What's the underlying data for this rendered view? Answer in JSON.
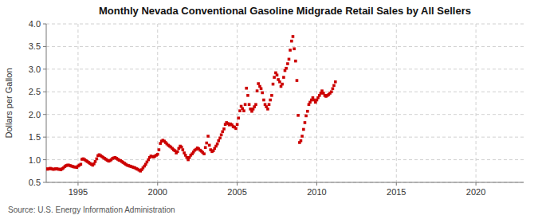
{
  "chart_data": {
    "type": "scatter",
    "title": "Monthly Nevada Conventional Gasoline Midgrade Retail Sales by All Sellers",
    "y_label": "Dollars per Gallon",
    "annotation": "Source: U.S. Energy Information Administration",
    "color": "#cc0000",
    "marker": "square",
    "grid": true,
    "xlim": [
      1993.0,
      2023.0
    ],
    "ylim": [
      0.5,
      4.0
    ],
    "xticks": [
      1995,
      2000,
      2005,
      2010,
      2015,
      2020
    ],
    "yticks": [
      0.5,
      {
        "value": 1.0,
        "label": "1.0"
      },
      1.5,
      {
        "value": 2.0,
        "label": "2.0"
      },
      2.5,
      {
        "value": 3.0,
        "label": "3.0"
      },
      3.5,
      {
        "value": 4.0,
        "label": "4.0"
      }
    ],
    "x": [
      1993.0,
      1993.08,
      1993.17,
      1993.25,
      1993.33,
      1993.42,
      1993.5,
      1993.58,
      1993.67,
      1993.75,
      1993.83,
      1993.92,
      1994.0,
      1994.08,
      1994.17,
      1994.25,
      1994.33,
      1994.42,
      1994.5,
      1994.58,
      1994.67,
      1994.75,
      1994.83,
      1994.92,
      1995.0,
      1995.08,
      1995.17,
      1995.25,
      1995.33,
      1995.42,
      1995.5,
      1995.58,
      1995.67,
      1995.75,
      1995.83,
      1995.92,
      1996.0,
      1996.08,
      1996.17,
      1996.25,
      1996.33,
      1996.42,
      1996.5,
      1996.58,
      1996.67,
      1996.75,
      1996.83,
      1996.92,
      1997.0,
      1997.08,
      1997.17,
      1997.25,
      1997.33,
      1997.42,
      1997.5,
      1997.58,
      1997.67,
      1997.75,
      1997.83,
      1997.92,
      1998.0,
      1998.08,
      1998.17,
      1998.25,
      1998.33,
      1998.42,
      1998.5,
      1998.58,
      1998.67,
      1998.75,
      1998.83,
      1998.92,
      1999.0,
      1999.08,
      1999.17,
      1999.25,
      1999.33,
      1999.42,
      1999.5,
      1999.58,
      1999.67,
      1999.75,
      1999.83,
      1999.92,
      2000.0,
      2000.08,
      2000.17,
      2000.25,
      2000.33,
      2000.42,
      2000.5,
      2000.58,
      2000.67,
      2000.75,
      2000.83,
      2000.92,
      2001.0,
      2001.08,
      2001.17,
      2001.25,
      2001.33,
      2001.42,
      2001.5,
      2001.58,
      2001.67,
      2001.75,
      2001.83,
      2001.92,
      2002.0,
      2002.08,
      2002.17,
      2002.25,
      2002.33,
      2002.42,
      2002.5,
      2002.58,
      2002.67,
      2002.75,
      2002.83,
      2002.92,
      2003.0,
      2003.08,
      2003.17,
      2003.25,
      2003.33,
      2003.42,
      2003.5,
      2003.58,
      2003.67,
      2003.75,
      2003.83,
      2003.92,
      2004.0,
      2004.08,
      2004.17,
      2004.25,
      2004.33,
      2004.42,
      2004.5,
      2004.58,
      2004.67,
      2004.75,
      2004.83,
      2004.92,
      2005.0,
      2005.08,
      2005.17,
      2005.25,
      2005.33,
      2005.42,
      2005.5,
      2005.58,
      2005.67,
      2005.75,
      2005.83,
      2005.92,
      2006.0,
      2006.08,
      2006.17,
      2006.25,
      2006.33,
      2006.42,
      2006.5,
      2006.58,
      2006.67,
      2006.75,
      2006.83,
      2006.92,
      2007.0,
      2007.08,
      2007.17,
      2007.25,
      2007.33,
      2007.42,
      2007.5,
      2007.58,
      2007.67,
      2007.75,
      2007.83,
      2007.92,
      2008.0,
      2008.08,
      2008.17,
      2008.25,
      2008.33,
      2008.42,
      2008.5,
      2008.58,
      2008.67,
      2008.75,
      2008.83,
      2008.92,
      2009.0,
      2009.08,
      2009.17,
      2009.25,
      2009.33,
      2009.42,
      2009.5,
      2009.58,
      2009.67,
      2009.75,
      2009.83,
      2009.92,
      2010.0,
      2010.08,
      2010.17,
      2010.25,
      2010.33,
      2010.42,
      2010.5,
      2010.58,
      2010.67,
      2010.75,
      2010.83,
      2010.92,
      2011.0,
      2011.08,
      2011.17
    ],
    "values": [
      0.8,
      0.79,
      0.8,
      0.81,
      0.8,
      0.79,
      0.79,
      0.8,
      0.8,
      0.79,
      0.79,
      0.78,
      0.8,
      0.82,
      0.85,
      0.87,
      0.88,
      0.88,
      0.87,
      0.86,
      0.85,
      0.84,
      0.84,
      0.83,
      0.86,
      0.88,
      0.9,
      1.01,
      1.02,
      1.0,
      0.98,
      0.96,
      0.94,
      0.92,
      0.9,
      0.88,
      0.91,
      0.96,
      1.02,
      1.09,
      1.11,
      1.09,
      1.07,
      1.05,
      1.03,
      1.01,
      0.99,
      0.97,
      0.98,
      1.0,
      1.03,
      1.04,
      1.05,
      1.03,
      1.01,
      0.99,
      0.98,
      0.96,
      0.94,
      0.92,
      0.9,
      0.88,
      0.87,
      0.86,
      0.85,
      0.84,
      0.83,
      0.82,
      0.8,
      0.79,
      0.77,
      0.75,
      0.78,
      0.82,
      0.86,
      0.9,
      0.95,
      1.0,
      1.05,
      1.08,
      1.07,
      1.06,
      1.08,
      1.1,
      1.12,
      1.22,
      1.36,
      1.41,
      1.43,
      1.41,
      1.38,
      1.35,
      1.32,
      1.3,
      1.28,
      1.25,
      1.22,
      1.2,
      1.15,
      1.18,
      1.25,
      1.3,
      1.28,
      1.22,
      1.15,
      1.1,
      1.05,
      1.0,
      1.05,
      1.1,
      1.13,
      1.17,
      1.21,
      1.23,
      1.26,
      1.24,
      1.21,
      1.19,
      1.16,
      1.13,
      1.27,
      1.37,
      1.52,
      1.32,
      1.22,
      1.18,
      1.2,
      1.25,
      1.3,
      1.35,
      1.42,
      1.48,
      1.55,
      1.62,
      1.68,
      1.78,
      1.82,
      1.8,
      1.77,
      1.79,
      1.77,
      1.73,
      1.72,
      1.69,
      1.78,
      1.92,
      2.08,
      2.18,
      2.13,
      2.08,
      2.22,
      2.58,
      2.42,
      2.22,
      2.12,
      2.07,
      2.12,
      2.17,
      2.22,
      2.52,
      2.68,
      2.62,
      2.57,
      2.48,
      2.32,
      2.22,
      2.17,
      2.12,
      2.22,
      2.32,
      2.42,
      2.67,
      2.82,
      2.92,
      2.87,
      2.77,
      2.72,
      2.62,
      2.67,
      2.82,
      2.97,
      3.02,
      3.12,
      3.22,
      3.42,
      3.62,
      3.72,
      3.45,
      3.18,
      2.75,
      1.98,
      1.38,
      1.42,
      1.52,
      1.67,
      1.82,
      1.97,
      2.07,
      2.22,
      2.27,
      2.32,
      2.37,
      2.32,
      2.27,
      2.32,
      2.37,
      2.42,
      2.47,
      2.52,
      2.47,
      2.42,
      2.4,
      2.42,
      2.44,
      2.47,
      2.5,
      2.57,
      2.64,
      2.72
    ]
  }
}
